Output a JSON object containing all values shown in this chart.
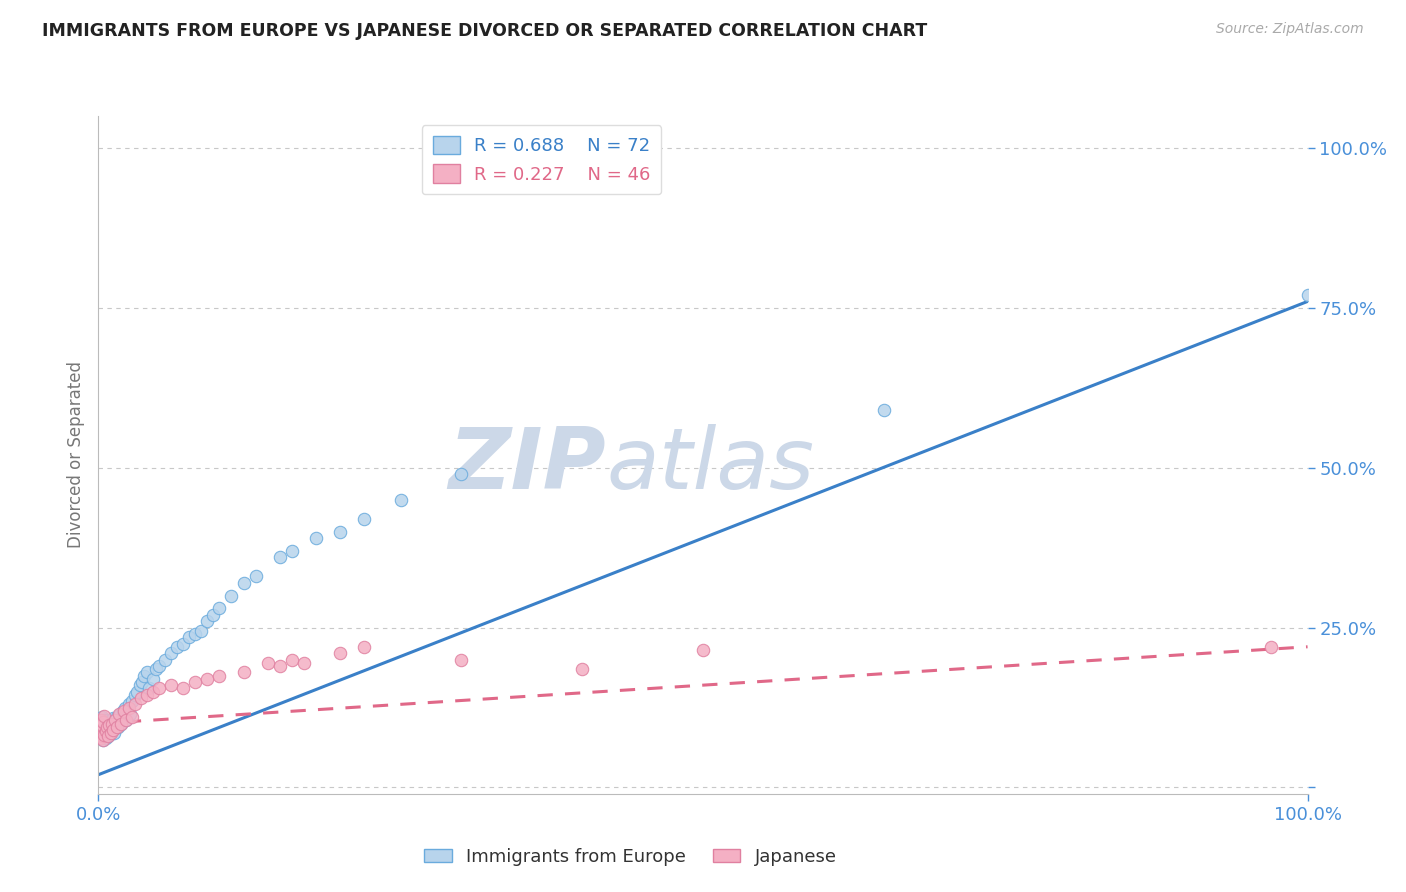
{
  "title": "IMMIGRANTS FROM EUROPE VS JAPANESE DIVORCED OR SEPARATED CORRELATION CHART",
  "source": "Source: ZipAtlas.com",
  "ylabel": "Divorced or Separated",
  "watermark_line1": "ZIP",
  "watermark_line2": "atlas",
  "blue_R": 0.688,
  "blue_N": 72,
  "pink_R": 0.227,
  "pink_N": 46,
  "blue_scatter_x": [
    0.001,
    0.001,
    0.002,
    0.002,
    0.002,
    0.003,
    0.003,
    0.003,
    0.004,
    0.004,
    0.005,
    0.005,
    0.005,
    0.006,
    0.006,
    0.007,
    0.007,
    0.008,
    0.008,
    0.009,
    0.009,
    0.01,
    0.01,
    0.011,
    0.012,
    0.012,
    0.013,
    0.014,
    0.015,
    0.016,
    0.017,
    0.018,
    0.019,
    0.02,
    0.021,
    0.022,
    0.023,
    0.025,
    0.026,
    0.028,
    0.03,
    0.032,
    0.034,
    0.036,
    0.038,
    0.04,
    0.042,
    0.045,
    0.048,
    0.05,
    0.055,
    0.06,
    0.065,
    0.07,
    0.075,
    0.08,
    0.085,
    0.09,
    0.095,
    0.1,
    0.11,
    0.12,
    0.13,
    0.15,
    0.16,
    0.18,
    0.2,
    0.22,
    0.25,
    0.3,
    0.65,
    1.0
  ],
  "blue_scatter_y": [
    0.09,
    0.1,
    0.08,
    0.095,
    0.105,
    0.085,
    0.092,
    0.11,
    0.075,
    0.1,
    0.088,
    0.095,
    0.105,
    0.078,
    0.092,
    0.085,
    0.098,
    0.08,
    0.095,
    0.082,
    0.1,
    0.088,
    0.102,
    0.09,
    0.095,
    0.108,
    0.085,
    0.1,
    0.11,
    0.095,
    0.105,
    0.115,
    0.1,
    0.12,
    0.11,
    0.125,
    0.105,
    0.13,
    0.115,
    0.135,
    0.145,
    0.15,
    0.16,
    0.165,
    0.175,
    0.18,
    0.155,
    0.17,
    0.185,
    0.19,
    0.2,
    0.21,
    0.22,
    0.225,
    0.235,
    0.24,
    0.245,
    0.26,
    0.27,
    0.28,
    0.3,
    0.32,
    0.33,
    0.36,
    0.37,
    0.39,
    0.4,
    0.42,
    0.45,
    0.49,
    0.59,
    0.77
  ],
  "pink_scatter_x": [
    0.001,
    0.001,
    0.002,
    0.002,
    0.003,
    0.003,
    0.004,
    0.004,
    0.005,
    0.005,
    0.006,
    0.007,
    0.008,
    0.009,
    0.01,
    0.011,
    0.012,
    0.014,
    0.015,
    0.017,
    0.019,
    0.021,
    0.023,
    0.025,
    0.028,
    0.03,
    0.035,
    0.04,
    0.045,
    0.05,
    0.06,
    0.07,
    0.08,
    0.09,
    0.1,
    0.12,
    0.14,
    0.15,
    0.16,
    0.17,
    0.2,
    0.22,
    0.3,
    0.4,
    0.5,
    0.97
  ],
  "pink_scatter_y": [
    0.085,
    0.095,
    0.078,
    0.105,
    0.08,
    0.098,
    0.075,
    0.102,
    0.082,
    0.112,
    0.088,
    0.095,
    0.08,
    0.098,
    0.085,
    0.1,
    0.09,
    0.105,
    0.095,
    0.115,
    0.1,
    0.12,
    0.105,
    0.125,
    0.11,
    0.13,
    0.14,
    0.145,
    0.15,
    0.155,
    0.16,
    0.155,
    0.165,
    0.17,
    0.175,
    0.18,
    0.195,
    0.19,
    0.2,
    0.195,
    0.21,
    0.22,
    0.2,
    0.185,
    0.215,
    0.22
  ],
  "blue_trendline_x": [
    0.0,
    1.0
  ],
  "blue_trendline_y": [
    0.02,
    0.76
  ],
  "pink_trendline_x": [
    0.0,
    1.0
  ],
  "pink_trendline_y": [
    0.1,
    0.22
  ],
  "xlim": [
    0.0,
    1.0
  ],
  "ylim": [
    -0.01,
    1.05
  ],
  "ytick_positions": [
    0.0,
    0.25,
    0.5,
    0.75,
    1.0
  ],
  "ytick_labels": [
    "",
    "25.0%",
    "50.0%",
    "75.0%",
    "100.0%"
  ],
  "xtick_positions": [
    0.0,
    1.0
  ],
  "xtick_labels": [
    "0.0%",
    "100.0%"
  ],
  "blue_scatter_color": "#b8d4ec",
  "blue_edge_color": "#6aabdd",
  "blue_line_color": "#3a80c8",
  "pink_scatter_color": "#f4b0c4",
  "pink_edge_color": "#e080a0",
  "pink_line_color": "#e06888",
  "grid_color": "#c8c8c8",
  "title_color": "#222222",
  "watermark_color": "#ccd8e8",
  "axis_label_color": "#777777",
  "tick_label_color": "#4a90d9",
  "background_color": "#ffffff",
  "blue_label": "Immigrants from Europe",
  "pink_label": "Japanese"
}
